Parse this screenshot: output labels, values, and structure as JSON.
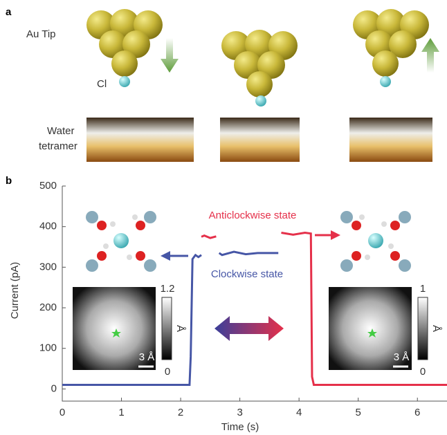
{
  "panel_a": {
    "label": "a",
    "tip_label": "Au Tip",
    "cl_label": "Cl",
    "water_label": [
      "Water",
      "tetramer"
    ]
  },
  "chart_data": {
    "type": "line",
    "panel_label": "b",
    "x_label": "Time (s)",
    "y_label": "Current (pA)",
    "x": [
      0,
      2.15,
      2.17,
      2.2,
      2.25,
      2.3,
      2.35,
      2.4,
      2.5,
      2.6,
      2.65,
      2.7,
      2.9,
      3.1,
      3.3,
      3.5,
      3.65,
      3.7,
      3.9,
      4.1,
      4.2,
      4.22,
      4.25,
      5.0,
      6.5
    ],
    "series": [
      {
        "name": "Clockwise state",
        "color": "#4656a6",
        "values": [
          10,
          10,
          80,
          320,
          330,
          325,
          330,
          null,
          null,
          null,
          335,
          330,
          338,
          332,
          335,
          335,
          335,
          null,
          null,
          null,
          null,
          null,
          null,
          null,
          null
        ]
      },
      {
        "name": "Anticlockwise state",
        "color": "#e5304a",
        "values": [
          null,
          null,
          null,
          null,
          null,
          null,
          375,
          378,
          372,
          376,
          null,
          null,
          null,
          null,
          null,
          null,
          null,
          385,
          380,
          385,
          383,
          30,
          10,
          10,
          10
        ]
      }
    ],
    "xlim": [
      0,
      6.5
    ],
    "ylim": [
      -30,
      500
    ],
    "xticks": [
      0,
      1,
      2,
      3,
      4,
      5,
      6
    ],
    "yticks": [
      0,
      100,
      200,
      300,
      400,
      500
    ],
    "insets": [
      {
        "max_label": "1.2",
        "unit": "Å",
        "min_label": "0",
        "scale_label": "3 Å"
      },
      {
        "max_label": "1",
        "unit": "Å",
        "min_label": "0",
        "scale_label": "3 Å"
      }
    ]
  }
}
